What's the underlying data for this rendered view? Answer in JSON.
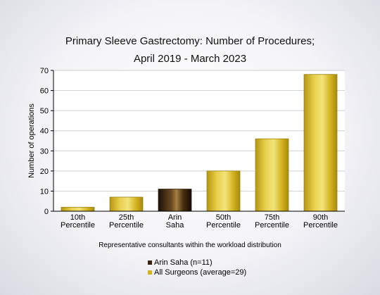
{
  "chart_data": {
    "type": "bar",
    "title": "Primary Sleeve Gastrectomy: Number of Procedures;",
    "subtitle": "April 2019 - March 2023",
    "ylabel": "Number of operations",
    "xlabel": "Representative consultants within the workload distribution",
    "ylim": [
      0,
      70
    ],
    "yticks": [
      0,
      10,
      20,
      30,
      40,
      50,
      60,
      70
    ],
    "grid": true,
    "categories": [
      [
        "10th",
        "Percentile"
      ],
      [
        "25th",
        "Percentile"
      ],
      [
        "Arin",
        "Saha"
      ],
      [
        "50th",
        "Percentile"
      ],
      [
        "75th",
        "Percentile"
      ],
      [
        "90th",
        "Percentile"
      ]
    ],
    "values": [
      2,
      7,
      11,
      20,
      36,
      68
    ],
    "bar_series": [
      "all",
      "all",
      "highlight",
      "all",
      "all",
      "all"
    ],
    "legend": [
      {
        "key": "highlight",
        "label": "Arin Saha (n=11)",
        "color": "#3a2410"
      },
      {
        "key": "all",
        "label": "All Surgeons (average=29)",
        "color": "#d4b21c"
      }
    ],
    "legend_position": "bottom"
  }
}
